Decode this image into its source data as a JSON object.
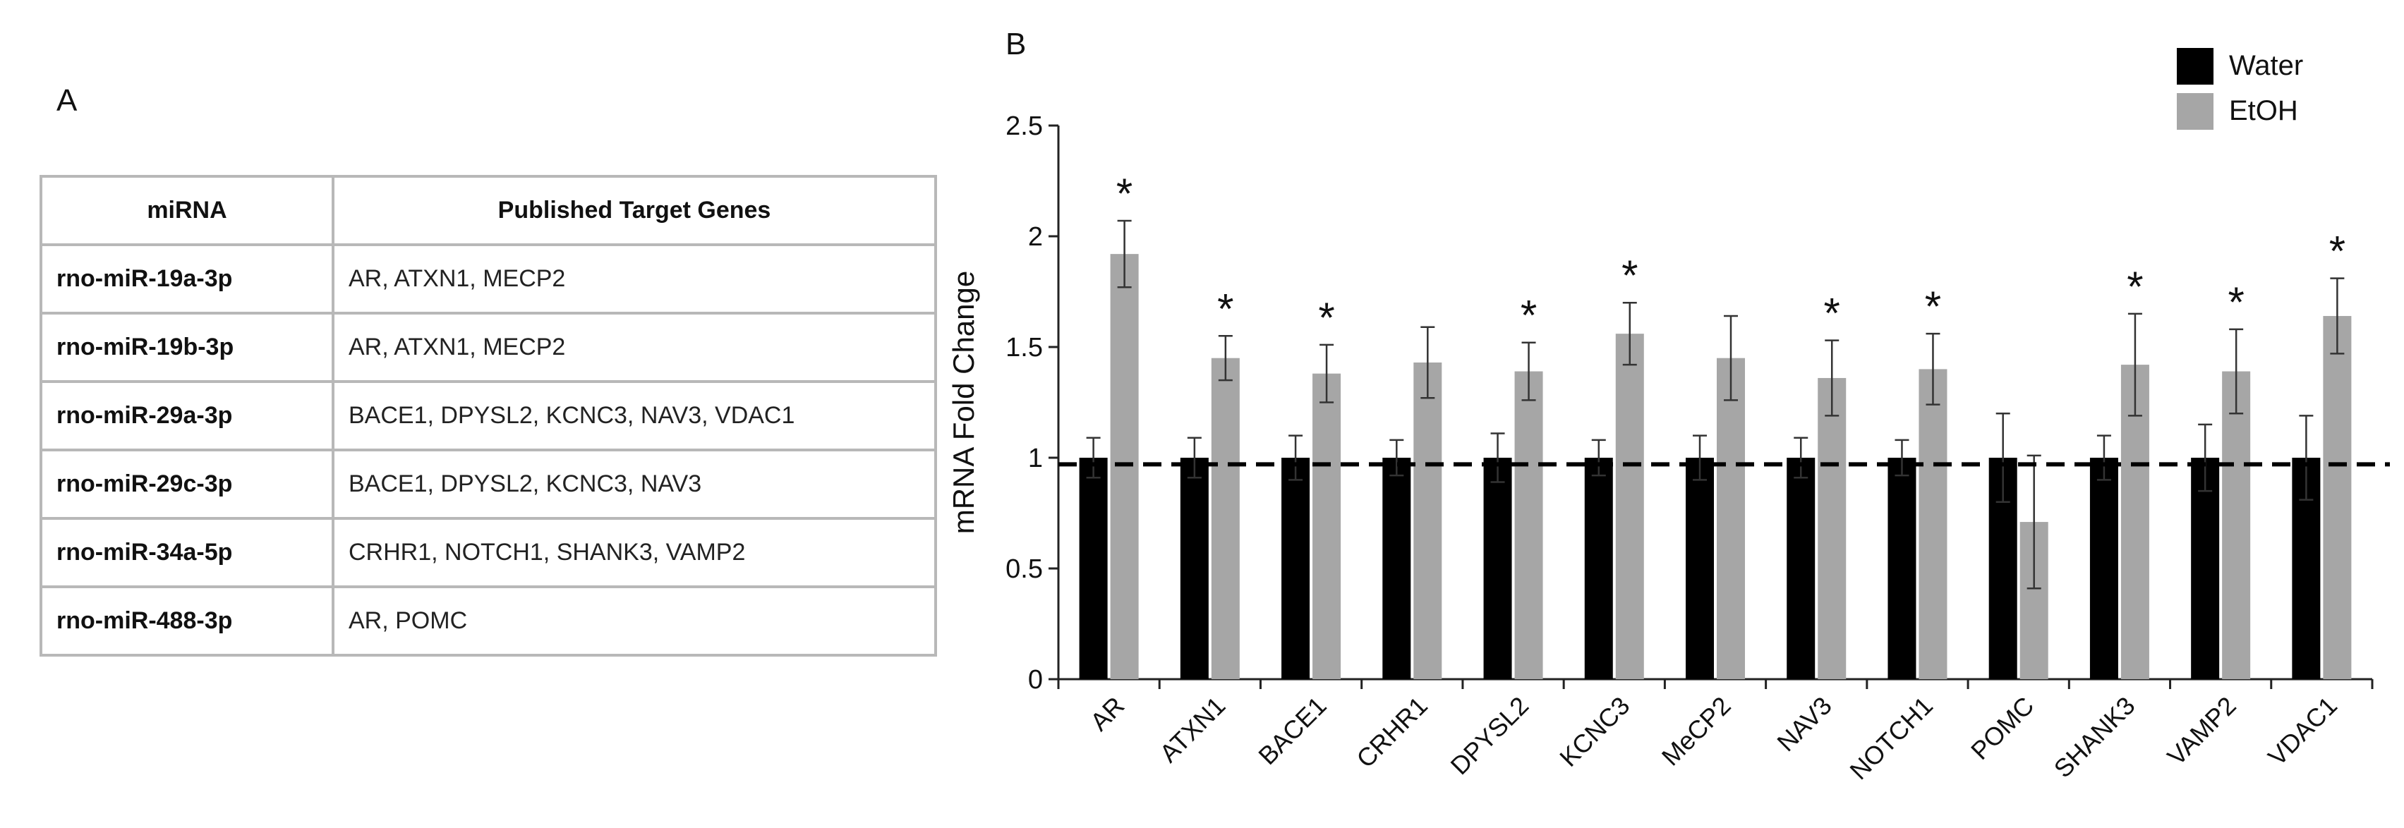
{
  "panel_a": {
    "label": "A",
    "table": {
      "headers": [
        "miRNA",
        "Published Target Genes"
      ],
      "rows": [
        {
          "mirna": "rno-miR-19a-3p",
          "genes": "AR, ATXN1, MECP2"
        },
        {
          "mirna": "rno-miR-19b-3p",
          "genes": "AR, ATXN1, MECP2"
        },
        {
          "mirna": "rno-miR-29a-3p",
          "genes": "BACE1, DPYSL2, KCNC3, NAV3, VDAC1"
        },
        {
          "mirna": "rno-miR-29c-3p",
          "genes": "BACE1, DPYSL2, KCNC3, NAV3"
        },
        {
          "mirna": "rno-miR-34a-5p",
          "genes": "CRHR1, NOTCH1, SHANK3, VAMP2"
        },
        {
          "mirna": "rno-miR-488-3p",
          "genes": "AR, POMC"
        }
      ]
    }
  },
  "panel_b": {
    "label": "B"
  },
  "chart_data": {
    "type": "bar",
    "title": "",
    "xlabel": "",
    "ylabel": "mRNA Fold Change",
    "ylim": [
      0,
      2.5
    ],
    "yticks": [
      0,
      0.5,
      1,
      1.5,
      2,
      2.5
    ],
    "ytick_labels": [
      "0",
      "0.5",
      "1",
      "1.5",
      "2",
      "2.5"
    ],
    "categories": [
      "AR",
      "ATXN1",
      "BACE1",
      "CRHR1",
      "DPYSL2",
      "KCNC3",
      "MeCP2",
      "NAV3",
      "NOTCH1",
      "POMC",
      "SHANK3",
      "VAMP2",
      "VDAC1"
    ],
    "series": [
      {
        "name": "Water",
        "color": "#000000",
        "values": [
          1,
          1,
          1,
          1,
          1,
          1,
          1,
          1,
          1,
          1,
          1,
          1,
          1
        ],
        "errors": [
          0.09,
          0.09,
          0.1,
          0.08,
          0.11,
          0.08,
          0.1,
          0.09,
          0.08,
          0.2,
          0.1,
          0.15,
          0.19
        ]
      },
      {
        "name": "EtOH",
        "color": "#a6a6a6",
        "values": [
          1.92,
          1.45,
          1.38,
          1.43,
          1.39,
          1.56,
          1.45,
          1.36,
          1.4,
          0.71,
          1.42,
          1.39,
          1.64
        ],
        "errors": [
          0.15,
          0.1,
          0.13,
          0.16,
          0.13,
          0.14,
          0.19,
          0.17,
          0.16,
          0.3,
          0.23,
          0.19,
          0.17
        ]
      }
    ],
    "significance_marker": "*",
    "significant": [
      "AR",
      "ATXN1",
      "BACE1",
      "DPYSL2",
      "KCNC3",
      "NAV3",
      "NOTCH1",
      "SHANK3",
      "VAMP2",
      "VDAC1"
    ],
    "reference_line": 0.97,
    "legend": {
      "position": "top-right",
      "entries": [
        "Water",
        "EtOH"
      ]
    },
    "grid": false
  }
}
